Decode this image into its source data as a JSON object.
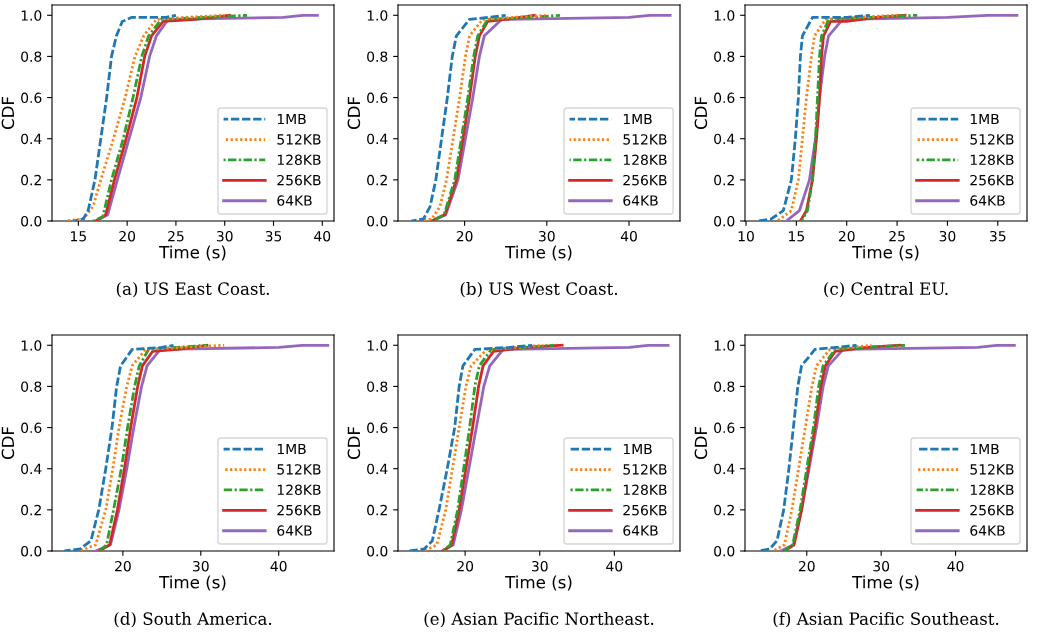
{
  "chart_data": [
    {
      "type": "line",
      "title": "(a) US East Coast.",
      "xlabel": "Time (s)",
      "ylabel": "CDF",
      "legend": "lower right",
      "grid": false,
      "xlim": [
        12.3,
        41.2
      ],
      "xticks": [
        15,
        20,
        25,
        30,
        35,
        40
      ],
      "ylim": [
        0,
        1.05
      ],
      "yticks": [
        {
          "value": 0,
          "label": "0.0"
        },
        {
          "value": 0.2,
          "label": "0.2"
        },
        {
          "value": 0.4,
          "label": "0.4"
        },
        {
          "value": 0.6,
          "label": "0.6"
        },
        {
          "value": 0.8,
          "label": "0.8"
        },
        {
          "value": 1,
          "label": "1.0"
        }
      ],
      "series": [
        {
          "name": "1MB",
          "color": "#1f77b4",
          "line_style": "dashed",
          "x": [
            14.5,
            15.5,
            16,
            16.7,
            17.3,
            17.9,
            18.4,
            18.9,
            19.5,
            20.5,
            24,
            25
          ],
          "values": [
            0,
            0.01,
            0.05,
            0.2,
            0.4,
            0.6,
            0.8,
            0.9,
            0.97,
            0.99,
            0.99,
            1.0
          ]
        },
        {
          "name": "512KB",
          "color": "#ff7f0e",
          "line_style": "dotted",
          "x": [
            13.7,
            15.5,
            16.5,
            17.3,
            18.6,
            19.8,
            20.8,
            21.7,
            23,
            26,
            30
          ],
          "values": [
            0,
            0.01,
            0.07,
            0.2,
            0.4,
            0.6,
            0.8,
            0.9,
            0.98,
            0.99,
            1.0
          ]
        },
        {
          "name": "128KB",
          "color": "#2ca02c",
          "line_style": "dashdot",
          "x": [
            16.5,
            17.5,
            18.4,
            19.6,
            20.6,
            21.5,
            22.2,
            23.5,
            28,
            32.3
          ],
          "values": [
            0,
            0.02,
            0.2,
            0.4,
            0.6,
            0.8,
            0.9,
            0.98,
            0.99,
            1.0
          ]
        },
        {
          "name": "256KB",
          "color": "#d62728",
          "line_style": "solid",
          "x": [
            16.8,
            17.8,
            18.7,
            19.9,
            21,
            21.8,
            22.5,
            23.7,
            27,
            30.5
          ],
          "values": [
            0,
            0.03,
            0.2,
            0.4,
            0.6,
            0.8,
            0.9,
            0.97,
            0.98,
            1.0
          ]
        },
        {
          "name": "64KB",
          "color": "#9467bd",
          "line_style": "solid",
          "x": [
            16.8,
            18,
            19,
            20.2,
            21.4,
            22.3,
            23,
            24.2,
            36,
            38,
            39.5
          ],
          "values": [
            0,
            0.03,
            0.2,
            0.4,
            0.6,
            0.8,
            0.9,
            0.98,
            0.99,
            1.0,
            1.0
          ]
        }
      ]
    },
    {
      "type": "line",
      "title": "(b) US West Coast.",
      "xlabel": "Time (s)",
      "ylabel": "CDF",
      "legend": "lower right",
      "grid": false,
      "xlim": [
        11.9,
        46.2
      ],
      "xticks": [
        20,
        30,
        40
      ],
      "ylim": [
        0,
        1.05
      ],
      "yticks": [
        {
          "value": 0,
          "label": "0.0"
        },
        {
          "value": 0.2,
          "label": "0.2"
        },
        {
          "value": 0.4,
          "label": "0.4"
        },
        {
          "value": 0.6,
          "label": "0.6"
        },
        {
          "value": 0.8,
          "label": "0.8"
        },
        {
          "value": 1,
          "label": "1.0"
        }
      ],
      "series": [
        {
          "name": "1MB",
          "color": "#1f77b4",
          "line_style": "dashed",
          "x": [
            13.5,
            15,
            15.8,
            16.5,
            17.2,
            17.9,
            18.5,
            19,
            20.6,
            23,
            25
          ],
          "values": [
            0,
            0.01,
            0.07,
            0.2,
            0.4,
            0.6,
            0.8,
            0.9,
            0.98,
            0.99,
            1.0
          ]
        },
        {
          "name": "512KB",
          "color": "#ff7f0e",
          "line_style": "dotted",
          "x": [
            14,
            16,
            17,
            17.8,
            18.6,
            19.4,
            20.1,
            20.6,
            22.2,
            26,
            29.8
          ],
          "values": [
            0,
            0.01,
            0.07,
            0.2,
            0.4,
            0.6,
            0.8,
            0.9,
            0.98,
            0.99,
            1.0
          ]
        },
        {
          "name": "128KB",
          "color": "#2ca02c",
          "line_style": "dashdot",
          "x": [
            16,
            17.5,
            18.8,
            19.6,
            20.4,
            21.1,
            21.6,
            22.8,
            28,
            31.6
          ],
          "values": [
            0,
            0.03,
            0.2,
            0.4,
            0.6,
            0.8,
            0.9,
            0.98,
            0.99,
            1.0
          ]
        },
        {
          "name": "256KB",
          "color": "#d62728",
          "line_style": "solid",
          "x": [
            16,
            17.6,
            19,
            19.8,
            20.6,
            21.3,
            21.8,
            22.8,
            25,
            28.5
          ],
          "values": [
            0,
            0.03,
            0.2,
            0.4,
            0.6,
            0.8,
            0.9,
            0.97,
            0.98,
            1.0
          ]
        },
        {
          "name": "64KB",
          "color": "#9467bd",
          "line_style": "solid",
          "x": [
            16,
            17.7,
            19.2,
            20.1,
            21,
            21.8,
            22.4,
            24.5,
            40,
            42.5,
            45
          ],
          "values": [
            0,
            0.03,
            0.2,
            0.4,
            0.6,
            0.8,
            0.9,
            0.98,
            0.99,
            1.0,
            1.0
          ]
        }
      ]
    },
    {
      "type": "line",
      "title": "(c) Central EU.",
      "xlabel": "Time (s)",
      "ylabel": "CDF",
      "legend": "lower right",
      "grid": false,
      "xlim": [
        9.9,
        37.9
      ],
      "xticks": [
        10,
        15,
        20,
        25,
        30,
        35
      ],
      "ylim": [
        0,
        1.05
      ],
      "yticks": [
        {
          "value": 0,
          "label": "0.0"
        },
        {
          "value": 0.2,
          "label": "0.2"
        },
        {
          "value": 0.4,
          "label": "0.4"
        },
        {
          "value": 0.6,
          "label": "0.6"
        },
        {
          "value": 0.8,
          "label": "0.8"
        },
        {
          "value": 1,
          "label": "1.0"
        }
      ],
      "series": [
        {
          "name": "1MB",
          "color": "#1f77b4",
          "line_style": "dashed",
          "x": [
            11.2,
            12.5,
            13.7,
            14.5,
            14.9,
            15.2,
            15.4,
            15.6,
            16.6,
            20,
            22.3
          ],
          "values": [
            0,
            0.01,
            0.05,
            0.2,
            0.4,
            0.6,
            0.8,
            0.9,
            0.99,
            0.99,
            1.0
          ]
        },
        {
          "name": "512KB",
          "color": "#ff7f0e",
          "line_style": "dotted",
          "x": [
            13.1,
            14.5,
            15.2,
            15.6,
            16,
            16.5,
            16.8,
            17.9,
            21,
            25
          ],
          "values": [
            0,
            0.05,
            0.2,
            0.4,
            0.6,
            0.8,
            0.9,
            0.98,
            0.99,
            1.0
          ]
        },
        {
          "name": "128KB",
          "color": "#2ca02c",
          "line_style": "dashdot",
          "x": [
            15.5,
            16.1,
            16.6,
            16.9,
            17.1,
            17.3,
            17.5,
            18.2,
            22,
            27
          ],
          "values": [
            0,
            0.05,
            0.2,
            0.4,
            0.6,
            0.8,
            0.9,
            0.98,
            0.99,
            1.0
          ]
        },
        {
          "name": "256KB",
          "color": "#d62728",
          "line_style": "solid",
          "x": [
            15.4,
            16,
            16.6,
            17,
            17.3,
            17.5,
            17.7,
            18.4,
            20,
            23,
            25.8
          ],
          "values": [
            0,
            0.05,
            0.2,
            0.4,
            0.6,
            0.8,
            0.9,
            0.97,
            0.97,
            0.99,
            1.0
          ]
        },
        {
          "name": "64KB",
          "color": "#9467bd",
          "line_style": "solid",
          "x": [
            14,
            15.3,
            16.3,
            16.9,
            17.3,
            17.8,
            18.2,
            19.6,
            30,
            34,
            36.9
          ],
          "values": [
            0,
            0.05,
            0.2,
            0.4,
            0.6,
            0.8,
            0.9,
            0.98,
            0.99,
            1.0,
            1.0
          ]
        }
      ]
    },
    {
      "type": "line",
      "title": "(d) South America.",
      "xlabel": "Time (s)",
      "ylabel": "CDF",
      "legend": "lower right",
      "grid": false,
      "xlim": [
        10.9,
        47.1
      ],
      "xticks": [
        20,
        30,
        40
      ],
      "ylim": [
        0,
        1.05
      ],
      "yticks": [
        {
          "value": 0,
          "label": "0.0"
        },
        {
          "value": 0.2,
          "label": "0.2"
        },
        {
          "value": 0.4,
          "label": "0.4"
        },
        {
          "value": 0.6,
          "label": "0.6"
        },
        {
          "value": 0.8,
          "label": "0.8"
        },
        {
          "value": 1,
          "label": "1.0"
        }
      ],
      "series": [
        {
          "name": "1MB",
          "color": "#1f77b4",
          "line_style": "dashed",
          "x": [
            12.5,
            14.5,
            15.9,
            16.9,
            17.8,
            18.6,
            19.2,
            19.7,
            21.2,
            25,
            26.5
          ],
          "values": [
            0,
            0.01,
            0.05,
            0.2,
            0.4,
            0.6,
            0.8,
            0.9,
            0.98,
            0.99,
            1.0
          ]
        },
        {
          "name": "512KB",
          "color": "#ff7f0e",
          "line_style": "dotted",
          "x": [
            14.4,
            16.5,
            17.8,
            18.7,
            19.5,
            20.5,
            21.2,
            22.9,
            28,
            33
          ],
          "values": [
            0,
            0.03,
            0.2,
            0.4,
            0.6,
            0.8,
            0.9,
            0.98,
            0.99,
            1.0
          ]
        },
        {
          "name": "128KB",
          "color": "#2ca02c",
          "line_style": "dashdot",
          "x": [
            17,
            17.9,
            18.8,
            19.8,
            20.6,
            21.5,
            22.1,
            23.3,
            27,
            30.8
          ],
          "values": [
            0,
            0.03,
            0.2,
            0.4,
            0.6,
            0.8,
            0.9,
            0.98,
            0.99,
            1.0
          ]
        },
        {
          "name": "256KB",
          "color": "#d62728",
          "line_style": "solid",
          "x": [
            17,
            18.3,
            19.3,
            20.2,
            21,
            21.9,
            22.5,
            23.8,
            27,
            30.8
          ],
          "values": [
            0,
            0.03,
            0.2,
            0.4,
            0.6,
            0.8,
            0.9,
            0.97,
            0.98,
            1.0
          ]
        },
        {
          "name": "64KB",
          "color": "#9467bd",
          "line_style": "solid",
          "x": [
            16.5,
            18.4,
            19.5,
            20.5,
            21.4,
            22.4,
            23.1,
            24.8,
            40,
            43,
            46.3
          ],
          "values": [
            0,
            0.03,
            0.2,
            0.4,
            0.6,
            0.8,
            0.9,
            0.98,
            0.99,
            1.0,
            1.0
          ]
        }
      ]
    },
    {
      "type": "line",
      "title": "(e) Asian Pacific Northeast.",
      "xlabel": "Time (s)",
      "ylabel": "CDF",
      "legend": "lower right",
      "grid": false,
      "xlim": [
        11,
        48.8
      ],
      "xticks": [
        20,
        30,
        40
      ],
      "ylim": [
        0,
        1.05
      ],
      "yticks": [
        {
          "value": 0,
          "label": "0.0"
        },
        {
          "value": 0.2,
          "label": "0.2"
        },
        {
          "value": 0.4,
          "label": "0.4"
        },
        {
          "value": 0.6,
          "label": "0.6"
        },
        {
          "value": 0.8,
          "label": "0.8"
        },
        {
          "value": 1,
          "label": "1.0"
        }
      ],
      "series": [
        {
          "name": "1MB",
          "color": "#1f77b4",
          "line_style": "dashed",
          "x": [
            12.4,
            14.5,
            15.6,
            16.5,
            17.6,
            18.6,
            19.2,
            19.7,
            21.3,
            26,
            29
          ],
          "values": [
            0,
            0.01,
            0.05,
            0.2,
            0.4,
            0.6,
            0.8,
            0.9,
            0.98,
            0.99,
            1.0
          ]
        },
        {
          "name": "512KB",
          "color": "#ff7f0e",
          "line_style": "dotted",
          "x": [
            14.5,
            16.2,
            17.4,
            18.3,
            19.2,
            20.1,
            20.8,
            22.9,
            27,
            30.5
          ],
          "values": [
            0,
            0.03,
            0.2,
            0.4,
            0.6,
            0.8,
            0.9,
            0.98,
            0.99,
            1.0
          ]
        },
        {
          "name": "128KB",
          "color": "#2ca02c",
          "line_style": "dashdot",
          "x": [
            17,
            18,
            19,
            19.8,
            20.6,
            21.3,
            21.9,
            23.5,
            28,
            31.9
          ],
          "values": [
            0,
            0.03,
            0.2,
            0.4,
            0.6,
            0.8,
            0.9,
            0.98,
            0.99,
            1.0
          ]
        },
        {
          "name": "256KB",
          "color": "#d62728",
          "line_style": "solid",
          "x": [
            17,
            18.2,
            19.2,
            20.1,
            21,
            21.8,
            22.4,
            23.8,
            28,
            33
          ],
          "values": [
            0,
            0.03,
            0.2,
            0.4,
            0.6,
            0.8,
            0.9,
            0.97,
            0.99,
            1.0
          ]
        },
        {
          "name": "64KB",
          "color": "#9467bd",
          "line_style": "solid",
          "x": [
            17,
            18.4,
            19.5,
            20.5,
            21.5,
            22.5,
            23.3,
            25.1,
            42,
            44.5,
            47.2
          ],
          "values": [
            0,
            0.03,
            0.2,
            0.4,
            0.6,
            0.8,
            0.9,
            0.98,
            0.99,
            1.0,
            1.0
          ]
        }
      ]
    },
    {
      "type": "line",
      "title": "(f) Asian Pacific Southeast.",
      "xlabel": "Time (s)",
      "ylabel": "CDF",
      "legend": "lower right",
      "grid": false,
      "xlim": [
        11.7,
        49.6
      ],
      "xticks": [
        20,
        30,
        40
      ],
      "ylim": [
        0,
        1.05
      ],
      "yticks": [
        {
          "value": 0,
          "label": "0.0"
        },
        {
          "value": 0.2,
          "label": "0.2"
        },
        {
          "value": 0.4,
          "label": "0.4"
        },
        {
          "value": 0.6,
          "label": "0.6"
        },
        {
          "value": 0.8,
          "label": "0.8"
        },
        {
          "value": 1,
          "label": "1.0"
        }
      ],
      "series": [
        {
          "name": "1MB",
          "color": "#1f77b4",
          "line_style": "dashed",
          "x": [
            13.5,
            15,
            16,
            16.9,
            17.6,
            18.2,
            18.8,
            19.3,
            21.1,
            24,
            26.7
          ],
          "values": [
            0,
            0.01,
            0.05,
            0.2,
            0.4,
            0.6,
            0.8,
            0.9,
            0.98,
            0.99,
            1.0
          ]
        },
        {
          "name": "512KB",
          "color": "#ff7f0e",
          "line_style": "dotted",
          "x": [
            15.5,
            17,
            18,
            18.9,
            19.8,
            20.7,
            21.3,
            23.1,
            26,
            28.7
          ],
          "values": [
            0,
            0.03,
            0.2,
            0.4,
            0.6,
            0.8,
            0.9,
            0.98,
            0.99,
            1.0
          ]
        },
        {
          "name": "128KB",
          "color": "#2ca02c",
          "line_style": "dashdot",
          "x": [
            17,
            18.1,
            19.1,
            20,
            20.9,
            21.6,
            22.2,
            23.8,
            28,
            33.2
          ],
          "values": [
            0,
            0.03,
            0.2,
            0.4,
            0.6,
            0.8,
            0.9,
            0.98,
            0.99,
            1.0
          ]
        },
        {
          "name": "256KB",
          "color": "#d62728",
          "line_style": "solid",
          "x": [
            17,
            18.3,
            19.3,
            20.2,
            21.1,
            21.9,
            22.5,
            23.8,
            28,
            32.5
          ],
          "values": [
            0,
            0.03,
            0.2,
            0.4,
            0.6,
            0.8,
            0.9,
            0.97,
            0.99,
            1.0
          ]
        },
        {
          "name": "64KB",
          "color": "#9467bd",
          "line_style": "solid",
          "x": [
            16.5,
            18.2,
            19.3,
            20.3,
            21.3,
            22.2,
            22.9,
            24.9,
            43,
            45.5,
            47.9
          ],
          "values": [
            0,
            0.03,
            0.2,
            0.4,
            0.6,
            0.8,
            0.9,
            0.98,
            0.99,
            1.0,
            1.0
          ]
        }
      ]
    }
  ]
}
